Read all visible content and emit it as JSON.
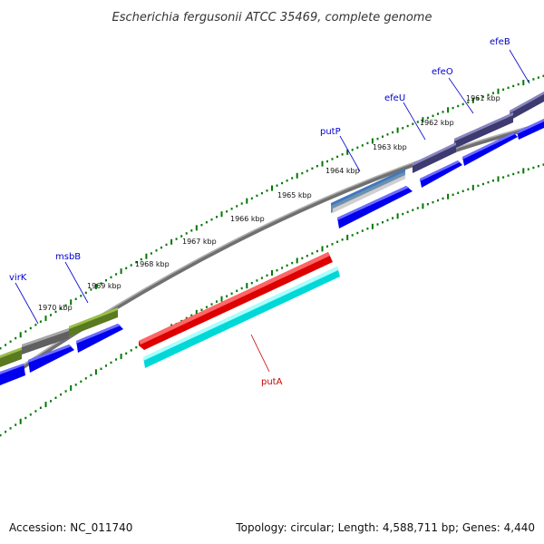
{
  "title": "Escherichia fergusonii ATCC 35469, complete genome",
  "footer": {
    "accession": "Accession: NC_011740",
    "topology": "Topology: circular; Length: 4,588,711 bp; Genes: 4,440"
  },
  "kbp_labels": [
    "1961 kbp",
    "1962 kbp",
    "1963 kbp",
    "1964 kbp",
    "1965 kbp",
    "1966 kbp",
    "1967 kbp",
    "1968 kbp",
    "1969 kbp",
    "1970 kbp"
  ],
  "genes": [
    {
      "name": "efeB",
      "color": "#0000cc"
    },
    {
      "name": "efeO",
      "color": "#0000cc"
    },
    {
      "name": "efeU",
      "color": "#0000cc"
    },
    {
      "name": "putP",
      "color": "#0000cc"
    },
    {
      "name": "msbB",
      "color": "#0000cc"
    },
    {
      "name": "virK",
      "color": "#0000cc"
    },
    {
      "name": "putA",
      "color": "#cc0000"
    }
  ],
  "colors": {
    "backbone": "#808080",
    "tick": "#007700",
    "cds": "#0000ff",
    "putA": "#ff0000",
    "putA_cds": "#00ffff",
    "efe": "#4a4585",
    "putP": "#5b8cc8",
    "msbB": "#6b8e23",
    "virK": "#6e6e6e"
  }
}
